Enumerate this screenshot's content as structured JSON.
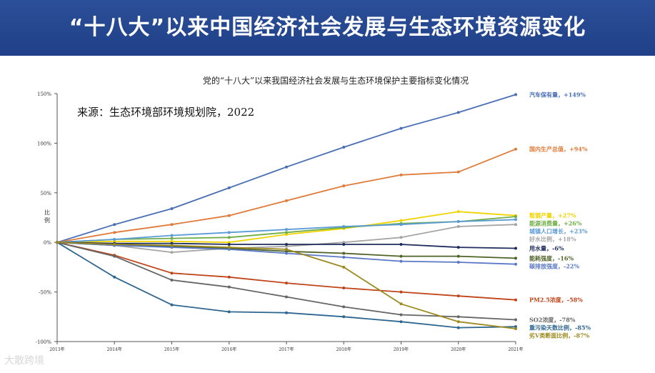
{
  "banner": {
    "title": "“十八大”以来中国经济社会发展与生态环境资源变化"
  },
  "chart_data": {
    "type": "line",
    "title": "党的“十八大”以来我国经济社会发展与生态环境保护主要指标变化情况",
    "source": "来源：生态环境部环境规划院，2022",
    "ylabel": "比例",
    "xlabel": "",
    "ylim": [
      -100,
      150
    ],
    "yticks": [
      150,
      100,
      50,
      0,
      -50,
      -100
    ],
    "ytick_labels": [
      "150%",
      "100%",
      "50%",
      "0%",
      "-50%",
      "-100%"
    ],
    "x": [
      "2013年",
      "2014年",
      "2015年",
      "2016年",
      "2017年",
      "2018年",
      "2019年",
      "2020年",
      "2021年"
    ],
    "grid": false,
    "legend": "right-end labels",
    "series": [
      {
        "name": "汽车保有量",
        "label": "汽车保有量，+149%",
        "color": "#4a6fb5",
        "values": [
          0,
          18,
          34,
          55,
          76,
          96,
          115,
          131,
          149
        ]
      },
      {
        "name": "国内生产总值",
        "label": "国内生产总值，+94%",
        "color": "#e07b39",
        "values": [
          0,
          10,
          18,
          27,
          42,
          57,
          68,
          71,
          94
        ]
      },
      {
        "name": "粗钢产量",
        "label": "粗钢产量，+27%",
        "color": "#f0d400",
        "values": [
          0,
          1,
          1,
          0,
          8,
          14,
          22,
          31,
          27
        ]
      },
      {
        "name": "能源消费量",
        "label": "能源消费量，+26%",
        "color": "#70ad47",
        "values": [
          0,
          3,
          4,
          5,
          10,
          15,
          19,
          21,
          26
        ]
      },
      {
        "name": "城镇人口增长",
        "label": "城镇人口增长，+23%",
        "color": "#5b9bd5",
        "values": [
          0,
          3,
          7,
          10,
          13,
          16,
          18,
          21,
          23
        ]
      },
      {
        "name": "好水比例",
        "label": "好水比例，+18%",
        "color": "#a5a5a5",
        "values": [
          0,
          -3,
          -10,
          -6,
          -4,
          0,
          5,
          16,
          18
        ]
      },
      {
        "name": "用水量",
        "label": "用水量，-6%",
        "color": "#1f2d5c",
        "values": [
          0,
          -1,
          -1,
          -2,
          -2,
          -2,
          -2,
          -5,
          -6
        ]
      },
      {
        "name": "能耗强度",
        "label": "能耗强度，-16%",
        "color": "#4f6228",
        "values": [
          0,
          -3,
          -4,
          -6,
          -9,
          -11,
          -14,
          -14,
          -16
        ]
      },
      {
        "name": "碳排放强度",
        "label": "碳排放强度，-22%",
        "color": "#5a78c5",
        "values": [
          0,
          -3,
          -5,
          -7,
          -11,
          -15,
          -19,
          -20,
          -22
        ]
      },
      {
        "name": "PM2.5浓度",
        "label": "PM2.5浓度，-58%",
        "color": "#c0441a",
        "values": [
          0,
          -13,
          -31,
          -35,
          -41,
          -46,
          -50,
          -54,
          -58
        ]
      },
      {
        "name": "SO2浓度",
        "label": "SO2浓度，-78%",
        "color": "#666666",
        "values": [
          0,
          -14,
          -38,
          -45,
          -55,
          -65,
          -73,
          -75,
          -78
        ]
      },
      {
        "name": "重污染天数比例",
        "label": "重污染天数比例，-85%",
        "color": "#2e6690",
        "values": [
          0,
          -35,
          -63,
          -70,
          -71,
          -75,
          -80,
          -86,
          -85
        ]
      },
      {
        "name": "劣V类断面比例",
        "label": "劣V类断面比例，-87%",
        "color": "#9c8a1f",
        "values": [
          0,
          -2,
          -3,
          -5,
          -7,
          -25,
          -62,
          -80,
          -87
        ]
      }
    ]
  },
  "watermark": {
    "text": "大散跨境"
  }
}
